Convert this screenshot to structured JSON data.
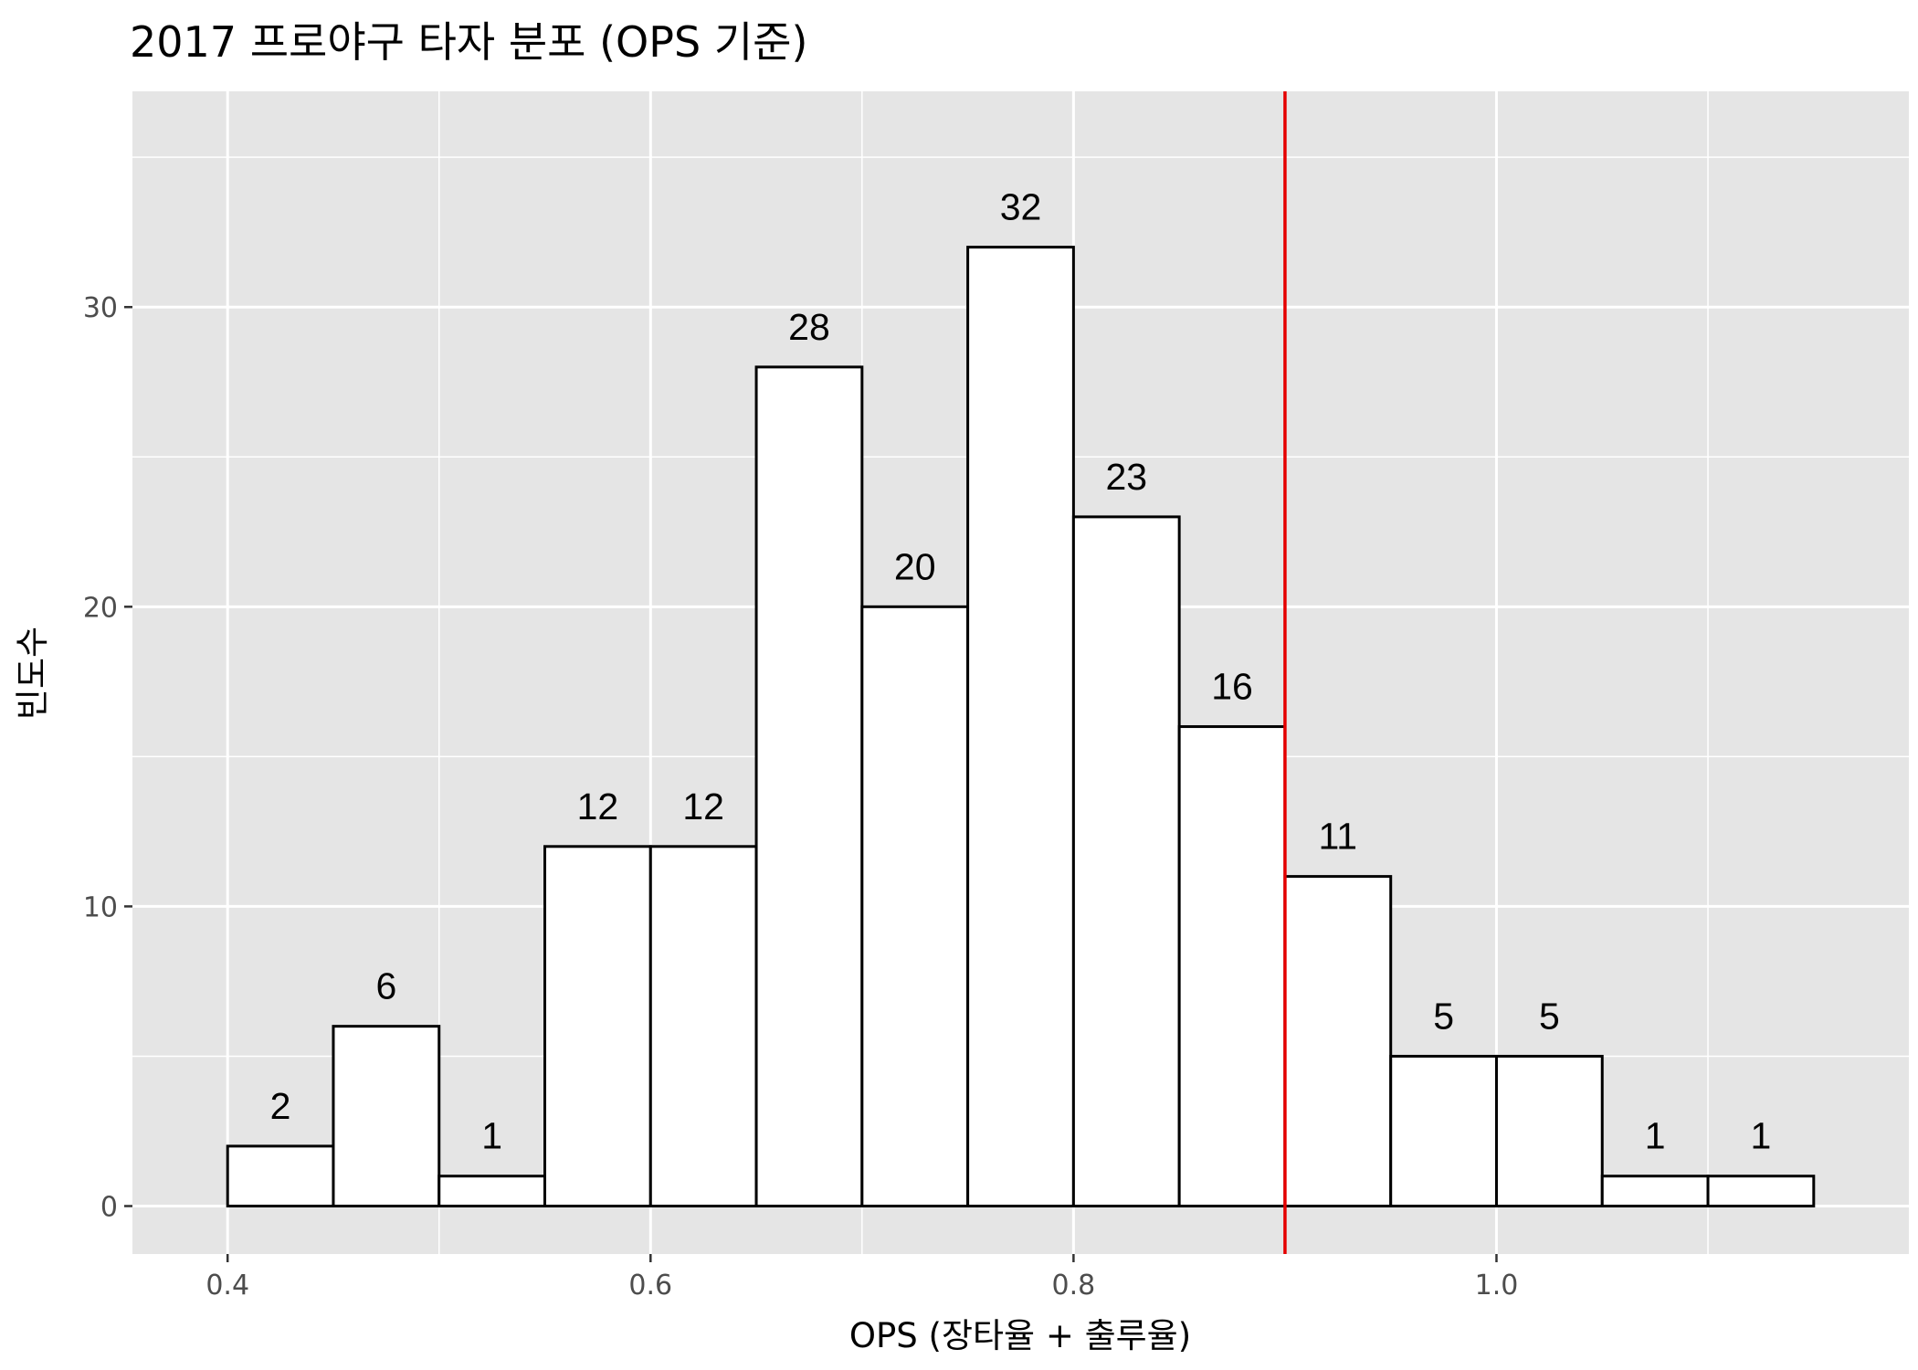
{
  "chart_data": {
    "type": "bar",
    "title": "2017 프로야구 타자 분포 (OPS 기준)",
    "xlabel": "OPS (장타율 + 출루율)",
    "ylabel": "빈도수",
    "xlim": [
      0.355,
      1.195
    ],
    "ylim": [
      -1.6,
      37.2
    ],
    "x_ticks": [
      0.4,
      0.6,
      0.8,
      1.0
    ],
    "x_tick_labels": [
      "0.4",
      "0.6",
      "0.8",
      "1.0"
    ],
    "y_ticks": [
      0,
      10,
      20,
      30
    ],
    "y_tick_labels": [
      "0",
      "10",
      "20",
      "30"
    ],
    "bin_width": 0.05,
    "bins": [
      {
        "start": 0.4,
        "end": 0.45,
        "count": 2,
        "label": "2"
      },
      {
        "start": 0.45,
        "end": 0.5,
        "count": 6,
        "label": "6"
      },
      {
        "start": 0.5,
        "end": 0.55,
        "count": 1,
        "label": "1"
      },
      {
        "start": 0.55,
        "end": 0.6,
        "count": 12,
        "label": "12"
      },
      {
        "start": 0.6,
        "end": 0.65,
        "count": 12,
        "label": "12"
      },
      {
        "start": 0.65,
        "end": 0.7,
        "count": 28,
        "label": "28"
      },
      {
        "start": 0.7,
        "end": 0.75,
        "count": 20,
        "label": "20"
      },
      {
        "start": 0.75,
        "end": 0.8,
        "count": 32,
        "label": "32"
      },
      {
        "start": 0.8,
        "end": 0.85,
        "count": 23,
        "label": "23"
      },
      {
        "start": 0.85,
        "end": 0.9,
        "count": 16,
        "label": "16"
      },
      {
        "start": 0.9,
        "end": 0.95,
        "count": 11,
        "label": "11"
      },
      {
        "start": 0.95,
        "end": 1.0,
        "count": 5,
        "label": "5"
      },
      {
        "start": 1.0,
        "end": 1.05,
        "count": 5,
        "label": "5"
      },
      {
        "start": 1.05,
        "end": 1.1,
        "count": 1,
        "label": "1"
      },
      {
        "start": 1.1,
        "end": 1.15,
        "count": 1,
        "label": "1"
      }
    ],
    "reference_line": {
      "x": 0.9,
      "color": "#e50000"
    },
    "grid": true,
    "legend": "none",
    "colors": {
      "panel_background": "#e5e5e5",
      "grid_major": "#ffffff",
      "bar_fill": "#ffffff",
      "bar_outline": "#000000"
    }
  }
}
